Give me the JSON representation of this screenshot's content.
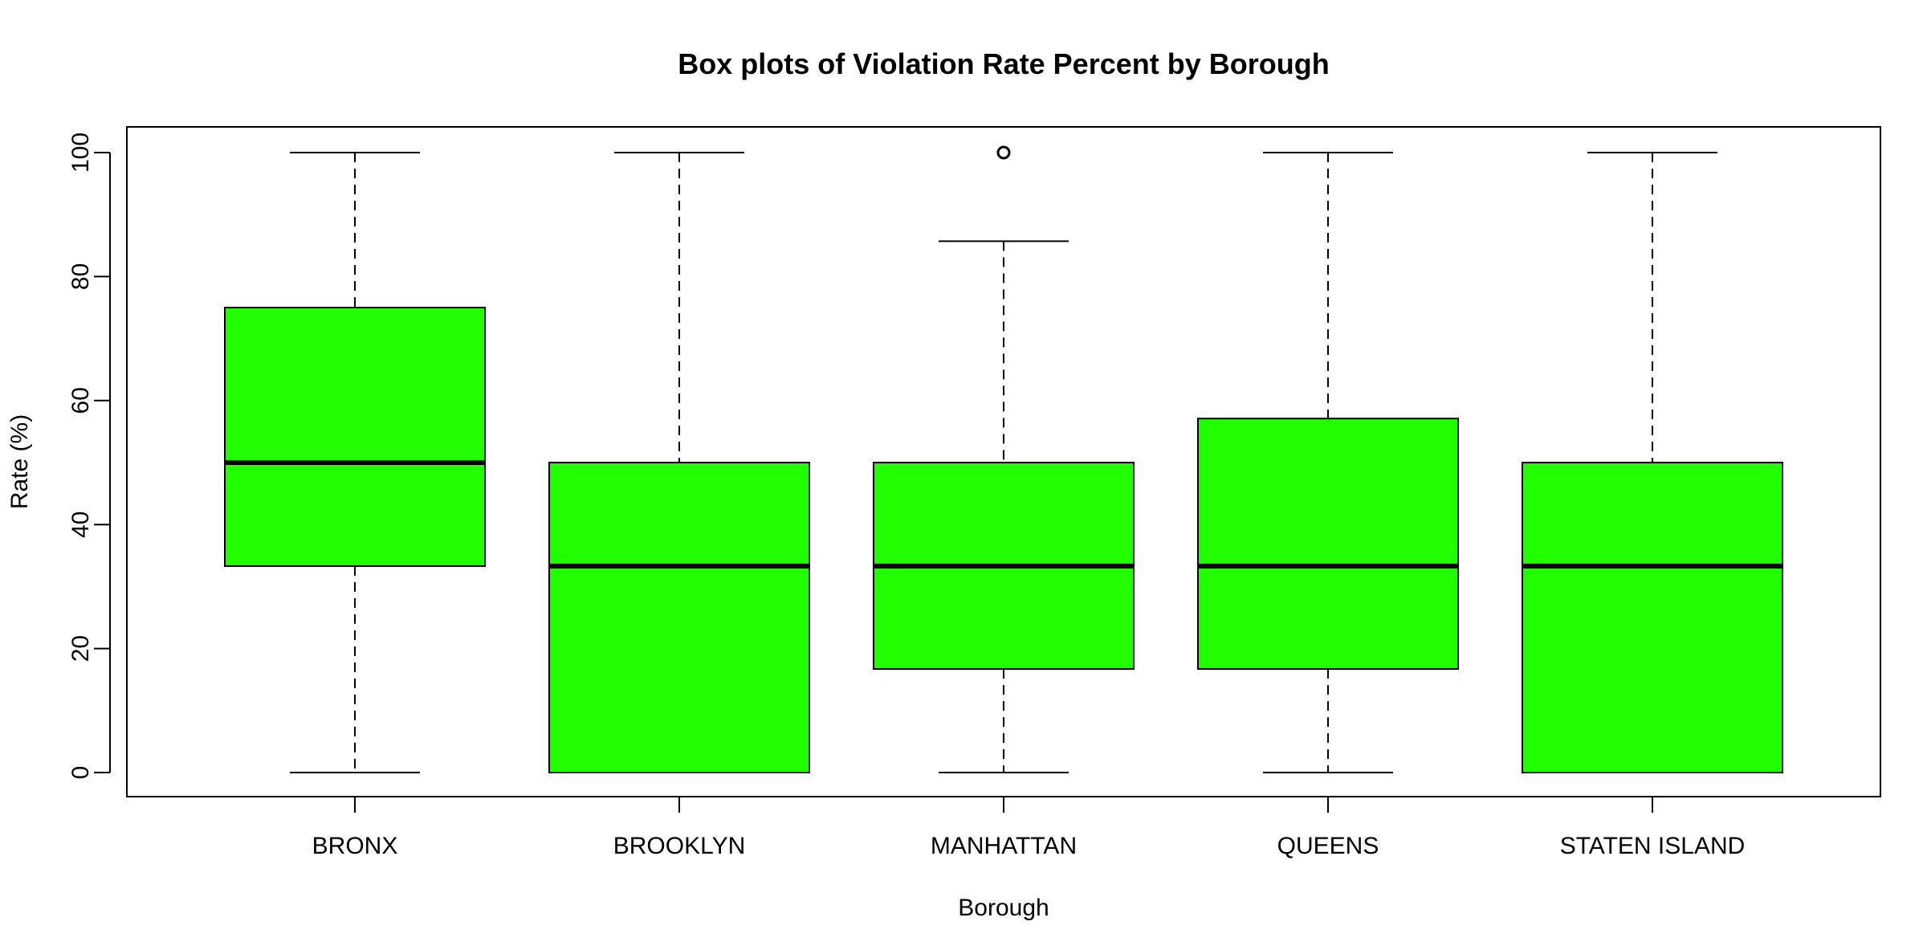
{
  "chart_data": {
    "type": "boxplot",
    "title": "Box plots of Violation Rate Percent by Borough",
    "xlabel": "Borough",
    "ylabel": "Rate (%)",
    "ylim": [
      0,
      100
    ],
    "yticks": [
      "0",
      "20",
      "40",
      "60",
      "80",
      "100"
    ],
    "box_color": "#22ff00",
    "grid": false,
    "categories": [
      "BRONX",
      "BROOKLYN",
      "MANHATTAN",
      "QUEENS",
      "STATEN ISLAND"
    ],
    "boxes": [
      {
        "name": "BRONX",
        "whisker_low": 0,
        "q1": 33.3,
        "median": 50,
        "q3": 75,
        "whisker_high": 100,
        "outliers": []
      },
      {
        "name": "BROOKLYN",
        "whisker_low": 0,
        "q1": 0,
        "median": 33.3,
        "q3": 50,
        "whisker_high": 100,
        "outliers": []
      },
      {
        "name": "MANHATTAN",
        "whisker_low": 0,
        "q1": 16.7,
        "median": 33.3,
        "q3": 50,
        "whisker_high": 85.7,
        "outliers": [
          100
        ]
      },
      {
        "name": "QUEENS",
        "whisker_low": 0,
        "q1": 16.7,
        "median": 33.3,
        "q3": 57.1,
        "whisker_high": 100,
        "outliers": []
      },
      {
        "name": "STATEN ISLAND",
        "whisker_low": 0,
        "q1": 0,
        "median": 33.3,
        "q3": 50,
        "whisker_high": 100,
        "outliers": []
      }
    ]
  }
}
